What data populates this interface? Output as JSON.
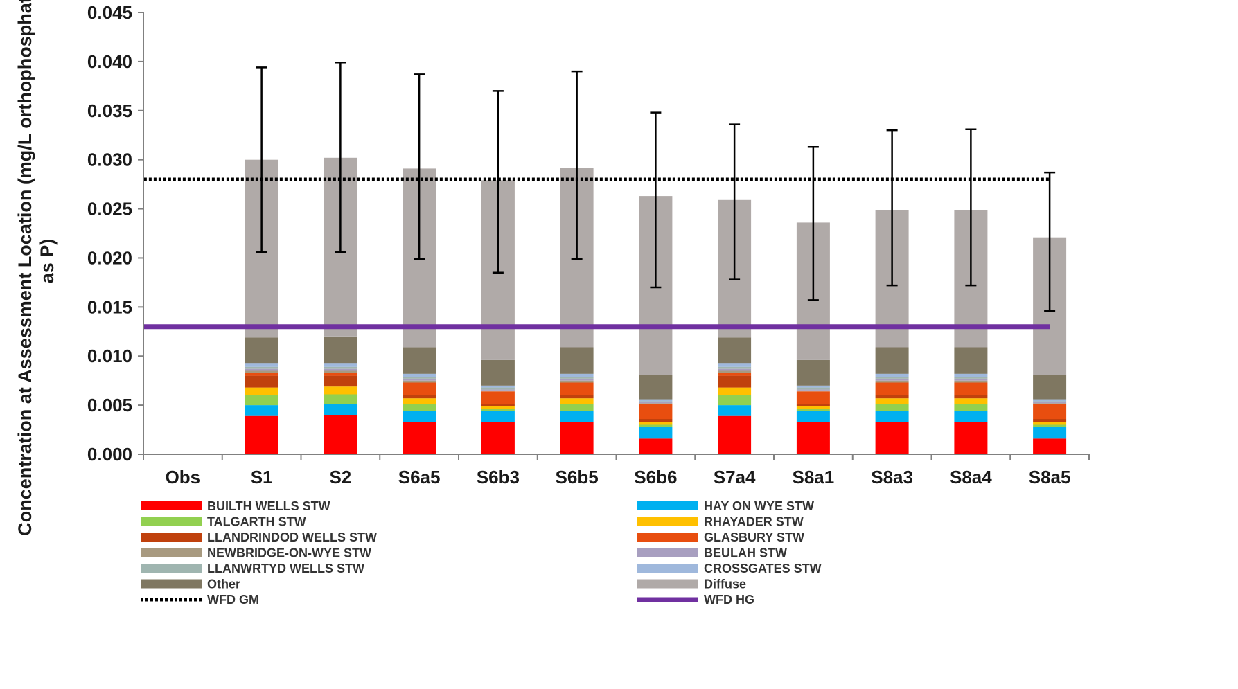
{
  "chart_data": {
    "type": "bar",
    "stacked": true,
    "title": "",
    "xlabel": "",
    "ylabel_lines": [
      "Concentration at Assessment Location (mg/L orthophosphate",
      "as P)"
    ],
    "ylim": [
      0,
      0.045
    ],
    "yticks": [
      "0.000",
      "0.005",
      "0.010",
      "0.015",
      "0.020",
      "0.025",
      "0.030",
      "0.035",
      "0.040",
      "0.045"
    ],
    "categories": [
      "Obs",
      "S1",
      "S2",
      "S6a5",
      "S6b3",
      "S6b5",
      "S6b6",
      "S7a4",
      "S8a1",
      "S8a3",
      "S8a4",
      "S8a5"
    ],
    "series": [
      {
        "name": "BUILTH WELLS STW",
        "color": "#ff0000",
        "values": [
          0,
          0.0039,
          0.004,
          0.0033,
          0.0033,
          0.0033,
          0.0016,
          0.0039,
          0.0033,
          0.0033,
          0.0033,
          0.0016
        ]
      },
      {
        "name": "HAY ON WYE STW",
        "color": "#00b0f0",
        "values": [
          0,
          0.0011,
          0.0011,
          0.0011,
          0.0011,
          0.0011,
          0.0012,
          0.0011,
          0.0011,
          0.0011,
          0.0011,
          0.0012
        ]
      },
      {
        "name": "TALGARTH STW",
        "color": "#92d050",
        "values": [
          0,
          0.001,
          0.001,
          0.0007,
          0.0002,
          0.0007,
          0.0002,
          0.001,
          0.0002,
          0.0007,
          0.0007,
          0.0002
        ]
      },
      {
        "name": "RHAYADER STW",
        "color": "#ffc000",
        "values": [
          0,
          0.0008,
          0.0008,
          0.0006,
          0.0003,
          0.0006,
          0.0003,
          0.0008,
          0.0003,
          0.0006,
          0.0006,
          0.0003
        ]
      },
      {
        "name": "LLANDRINDOD WELLS STW",
        "color": "#c0410d",
        "values": [
          0,
          0.0012,
          0.0011,
          0.0003,
          0.0002,
          0.0003,
          0.0003,
          0.0012,
          0.0002,
          0.0003,
          0.0003,
          0.0003
        ]
      },
      {
        "name": "GLASBURY STW",
        "color": "#e84e0f",
        "values": [
          0,
          0.0003,
          0.0003,
          0.0013,
          0.0013,
          0.0013,
          0.0015,
          0.0003,
          0.0013,
          0.0013,
          0.0013,
          0.0015
        ]
      },
      {
        "name": "NEWBRIDGE-ON-WYE STW",
        "color": "#a89a80",
        "values": [
          0,
          0.0002,
          0.0002,
          0.0002,
          0.0001,
          0.0002,
          0.0001,
          0.0002,
          0.0001,
          0.0002,
          0.0002,
          0.0001
        ]
      },
      {
        "name": "BEULAH STW",
        "color": "#a89fc0",
        "values": [
          0,
          0.0002,
          0.0002,
          0.0002,
          0.0001,
          0.0002,
          0.0001,
          0.0002,
          0.0001,
          0.0002,
          0.0002,
          0.0001
        ]
      },
      {
        "name": "LLANWRTYD WELLS STW",
        "color": "#9fb5b0",
        "values": [
          0,
          0.0002,
          0.0002,
          0.0002,
          0.0002,
          0.0002,
          0.0001,
          0.0002,
          0.0002,
          0.0002,
          0.0002,
          0.0001
        ]
      },
      {
        "name": "CROSSGATES STW",
        "color": "#9fb8dc",
        "values": [
          0,
          0.0004,
          0.0004,
          0.0003,
          0.0002,
          0.0003,
          0.0002,
          0.0004,
          0.0002,
          0.0003,
          0.0003,
          0.0002
        ]
      },
      {
        "name": "Other",
        "color": "#7f7761",
        "values": [
          0,
          0.0026,
          0.0027,
          0.0027,
          0.0026,
          0.0027,
          0.0025,
          0.0026,
          0.0026,
          0.0027,
          0.0027,
          0.0025
        ]
      },
      {
        "name": "Diffuse",
        "color": "#b0aaa8",
        "values": [
          0,
          0.0181,
          0.0182,
          0.0182,
          0.0183,
          0.0183,
          0.0182,
          0.014,
          0.014,
          0.014,
          0.014,
          0.014
        ]
      }
    ],
    "error_bars": {
      "low": [
        null,
        0.0206,
        0.0206,
        0.0199,
        0.0185,
        0.0199,
        0.017,
        0.0178,
        0.0157,
        0.0172,
        0.0172,
        0.0146
      ],
      "high": [
        null,
        0.0394,
        0.0399,
        0.0387,
        0.037,
        0.039,
        0.0348,
        0.0336,
        0.0313,
        0.033,
        0.0331,
        0.0287
      ]
    },
    "reference_lines": [
      {
        "name": "WFD GM",
        "value": 0.028,
        "style": "dotted",
        "color": "#000000"
      },
      {
        "name": "WFD HG",
        "value": 0.013,
        "style": "solid",
        "color": "#7030a0"
      }
    ],
    "legend_position": "bottom",
    "grid": false
  }
}
